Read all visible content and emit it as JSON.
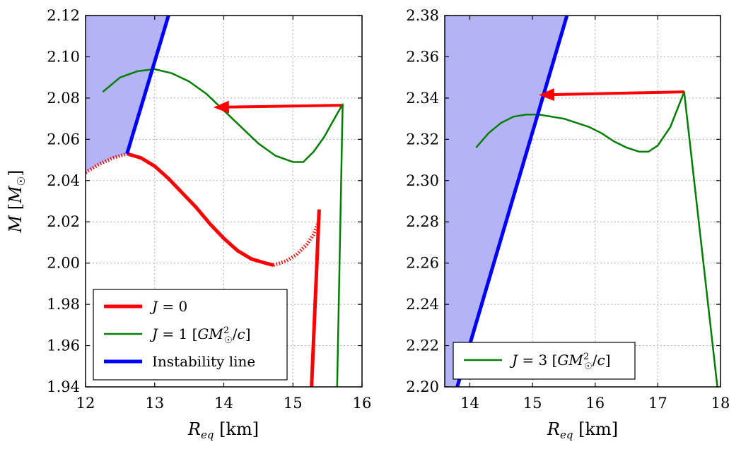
{
  "colors": {
    "red": "#ff0000",
    "green": "#008000",
    "blue": "#0000ff",
    "unstable_fill": "#b3b3f5",
    "grid": "#b0b0b0"
  },
  "chart_data": [
    {
      "type": "line",
      "xlabel": "R_eq [km]",
      "ylabel": "M [M_☉]",
      "xlim": [
        12,
        16
      ],
      "ylim": [
        1.94,
        2.12
      ],
      "xticks": [
        "12",
        "13",
        "14",
        "15",
        "16"
      ],
      "yticks": [
        "1.94",
        "1.96",
        "1.98",
        "2.00",
        "2.02",
        "2.04",
        "2.06",
        "2.08",
        "2.10",
        "2.12"
      ],
      "grid": true,
      "shaded_region": {
        "name": "unstable",
        "boundary_x": [
          12.6,
          13.2
        ],
        "boundary_y": [
          2.053,
          2.12
        ]
      },
      "series": [
        {
          "name": "J=0",
          "style": "solid-thick",
          "x": [
            12.6,
            12.8,
            13.0,
            13.2,
            13.4,
            13.6,
            13.8,
            14.0,
            14.2,
            14.4,
            14.6,
            14.72
          ],
          "y": [
            2.053,
            2.051,
            2.047,
            2.041,
            2.034,
            2.027,
            2.019,
            2.012,
            2.006,
            2.002,
            2.0,
            1.999
          ]
        },
        {
          "name": "J=0 (dotted unstable branch)",
          "style": "dotted",
          "x": [
            12.0,
            12.2,
            12.4,
            12.6
          ],
          "y": [
            2.044,
            2.048,
            2.051,
            2.053
          ]
        },
        {
          "name": "J=0 (dotted high-density branch)",
          "style": "dotted",
          "x": [
            14.72,
            14.9,
            15.05,
            15.2,
            15.3,
            15.37
          ],
          "y": [
            1.999,
            2.001,
            2.004,
            2.009,
            2.014,
            2.02
          ]
        },
        {
          "name": "J=0 (steep branch)",
          "style": "solid-thick",
          "x": [
            15.27,
            15.38
          ],
          "y": [
            1.94,
            2.026
          ]
        },
        {
          "name": "J=1",
          "style": "solid",
          "x": [
            12.25,
            12.5,
            12.75,
            13.0,
            13.25,
            13.5,
            13.75,
            14.0,
            14.25,
            14.5,
            14.75,
            15.0,
            15.15,
            15.3,
            15.45,
            15.6,
            15.72,
            15.64
          ],
          "y": [
            2.083,
            2.09,
            2.093,
            2.094,
            2.092,
            2.088,
            2.082,
            2.074,
            2.066,
            2.058,
            2.052,
            2.049,
            2.049,
            2.054,
            2.061,
            2.07,
            2.077,
            1.94
          ]
        }
      ],
      "instability_line": {
        "x": [
          12.6,
          13.2
        ],
        "y": [
          2.053,
          2.12
        ]
      },
      "arrow": {
        "from": [
          15.7,
          2.0765
        ],
        "to": [
          13.85,
          2.0755
        ]
      },
      "legend": {
        "placement": "lower-left",
        "entries": [
          {
            "label": "J = 0",
            "color": "#ff0000",
            "style": "thick"
          },
          {
            "label": "J = 1 [GM²☉/c]",
            "color": "#008000",
            "style": "thin"
          },
          {
            "label": "Instability line",
            "color": "#0000ff",
            "style": "thick"
          }
        ]
      }
    },
    {
      "type": "line",
      "xlabel": "R_eq [km]",
      "ylabel": "",
      "xlim": [
        13.6,
        18
      ],
      "ylim": [
        2.2,
        2.38
      ],
      "xticks": [
        "14",
        "15",
        "16",
        "17",
        "18"
      ],
      "yticks": [
        "2.20",
        "2.22",
        "2.24",
        "2.26",
        "2.28",
        "2.30",
        "2.32",
        "2.34",
        "2.36",
        "2.38"
      ],
      "grid": true,
      "shaded_region": {
        "name": "unstable",
        "boundary_x": [
          13.8,
          15.55
        ],
        "boundary_y": [
          2.2,
          2.38
        ]
      },
      "series": [
        {
          "name": "J=3",
          "style": "solid",
          "x": [
            14.1,
            14.3,
            14.5,
            14.7,
            14.9,
            15.1,
            15.3,
            15.5,
            15.7,
            15.9,
            16.1,
            16.3,
            16.5,
            16.7,
            16.85,
            17.0,
            17.2,
            17.42,
            17.95
          ],
          "y": [
            2.316,
            2.323,
            2.328,
            2.331,
            2.332,
            2.332,
            2.331,
            2.33,
            2.328,
            2.326,
            2.323,
            2.319,
            2.316,
            2.314,
            2.314,
            2.317,
            2.326,
            2.343,
            2.2
          ]
        }
      ],
      "instability_line": {
        "x": [
          13.8,
          15.55
        ],
        "y": [
          2.2,
          2.38
        ]
      },
      "arrow": {
        "from": [
          17.42,
          2.343
        ],
        "to": [
          15.1,
          2.3415
        ]
      },
      "legend": {
        "placement": "lower-left",
        "entries": [
          {
            "label": "J = 3 [GM²☉/c]",
            "color": "#008000",
            "style": "thin"
          }
        ]
      }
    }
  ]
}
